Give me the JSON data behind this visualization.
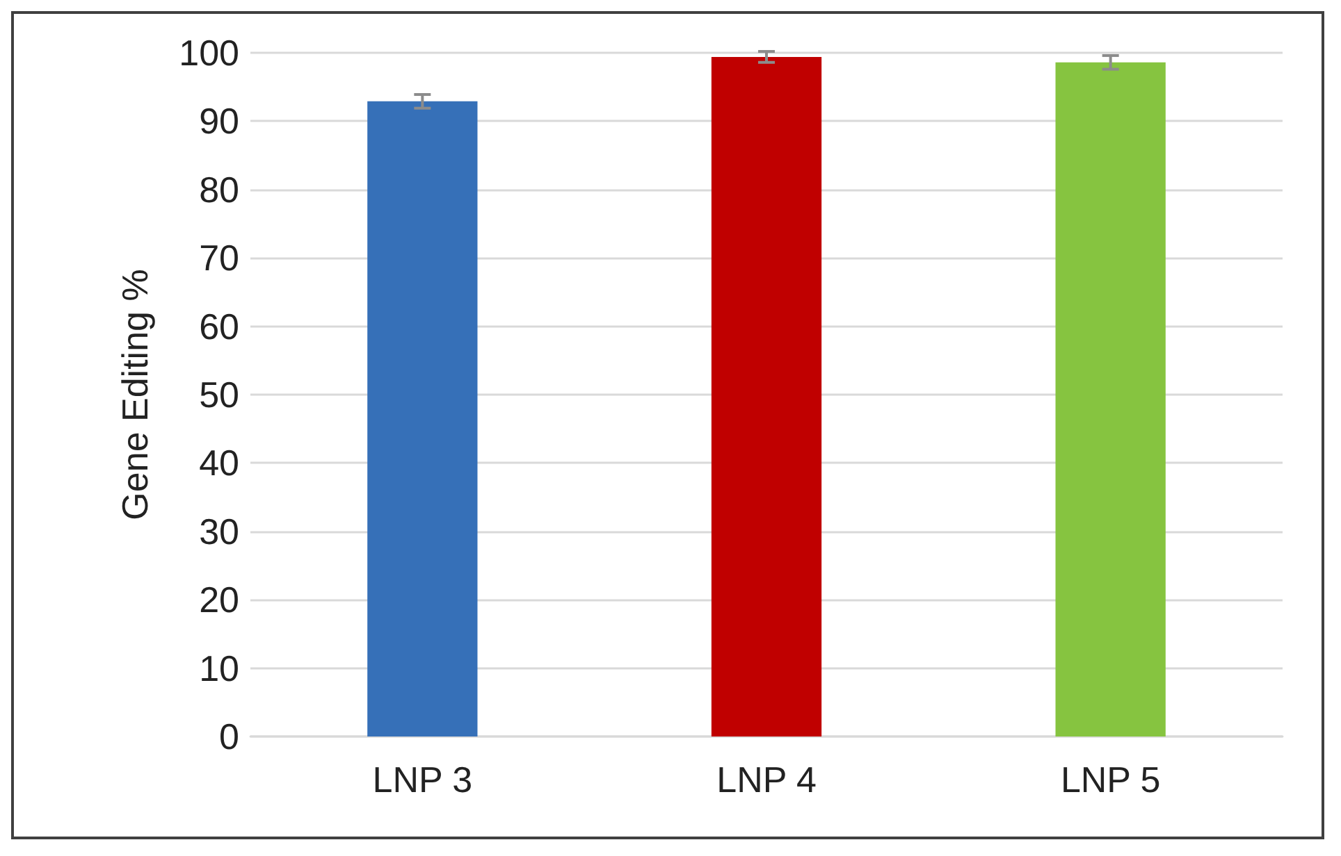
{
  "chart_data": {
    "type": "bar",
    "ylabel": "Gene Editing %",
    "categories": [
      "LNP 3",
      "LNP 4",
      "LNP 5"
    ],
    "values": [
      92.9,
      99.4,
      98.6
    ],
    "colors": [
      "#3670b8",
      "#c00000",
      "#86c440"
    ],
    "errors": [
      1.0,
      0.8,
      1.0
    ],
    "ylim": [
      0,
      100
    ],
    "yticks": [
      0,
      10,
      20,
      30,
      40,
      50,
      60,
      70,
      80,
      90,
      100
    ],
    "grid": "y"
  }
}
